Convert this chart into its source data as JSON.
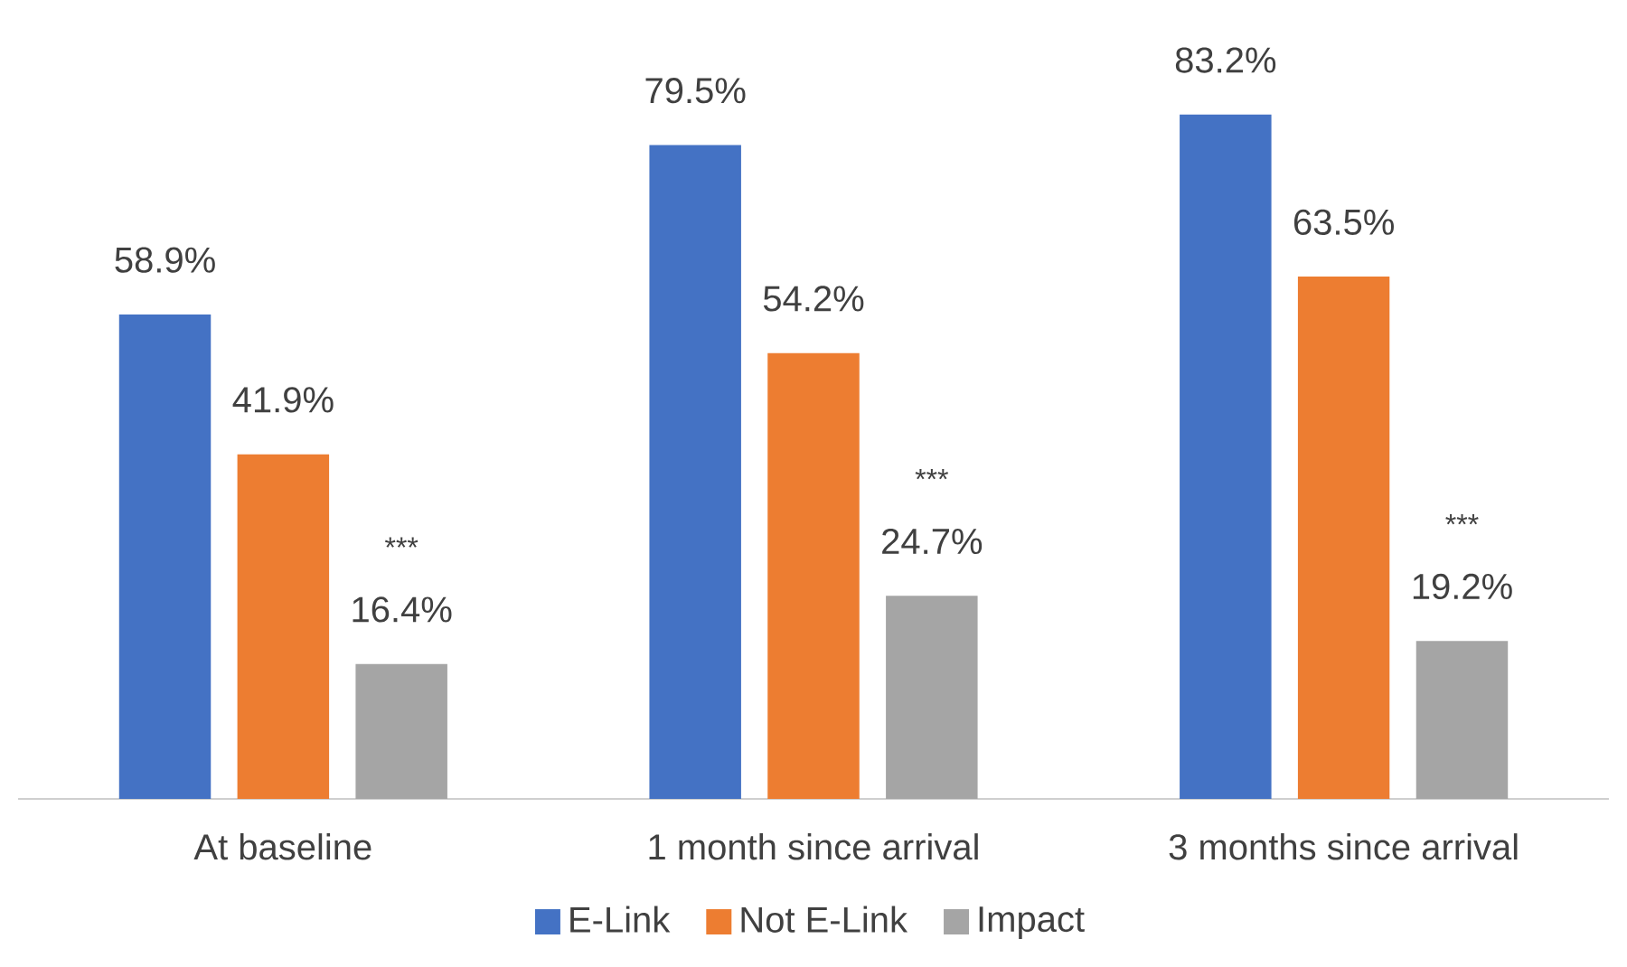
{
  "chart_data": {
    "type": "bar",
    "categories": [
      "At baseline",
      "1 month since arrival",
      "3 months since arrival"
    ],
    "series": [
      {
        "name": "E-Link",
        "color": "#4472c4",
        "values": [
          58.9,
          79.5,
          83.2
        ],
        "value_labels": [
          "58.9%",
          "79.5%",
          "83.2%"
        ]
      },
      {
        "name": "Not E-Link",
        "color": "#ed7d31",
        "values": [
          41.9,
          54.2,
          63.5
        ],
        "value_labels": [
          "41.9%",
          "54.2%",
          "63.5%"
        ]
      },
      {
        "name": "Impact",
        "color": "#a5a5a5",
        "values": [
          16.4,
          24.7,
          19.2
        ],
        "value_labels": [
          "16.4%",
          "24.7%",
          "19.2%"
        ]
      }
    ],
    "annotations": [
      "***",
      "***",
      "***"
    ],
    "legend": "bottom"
  }
}
